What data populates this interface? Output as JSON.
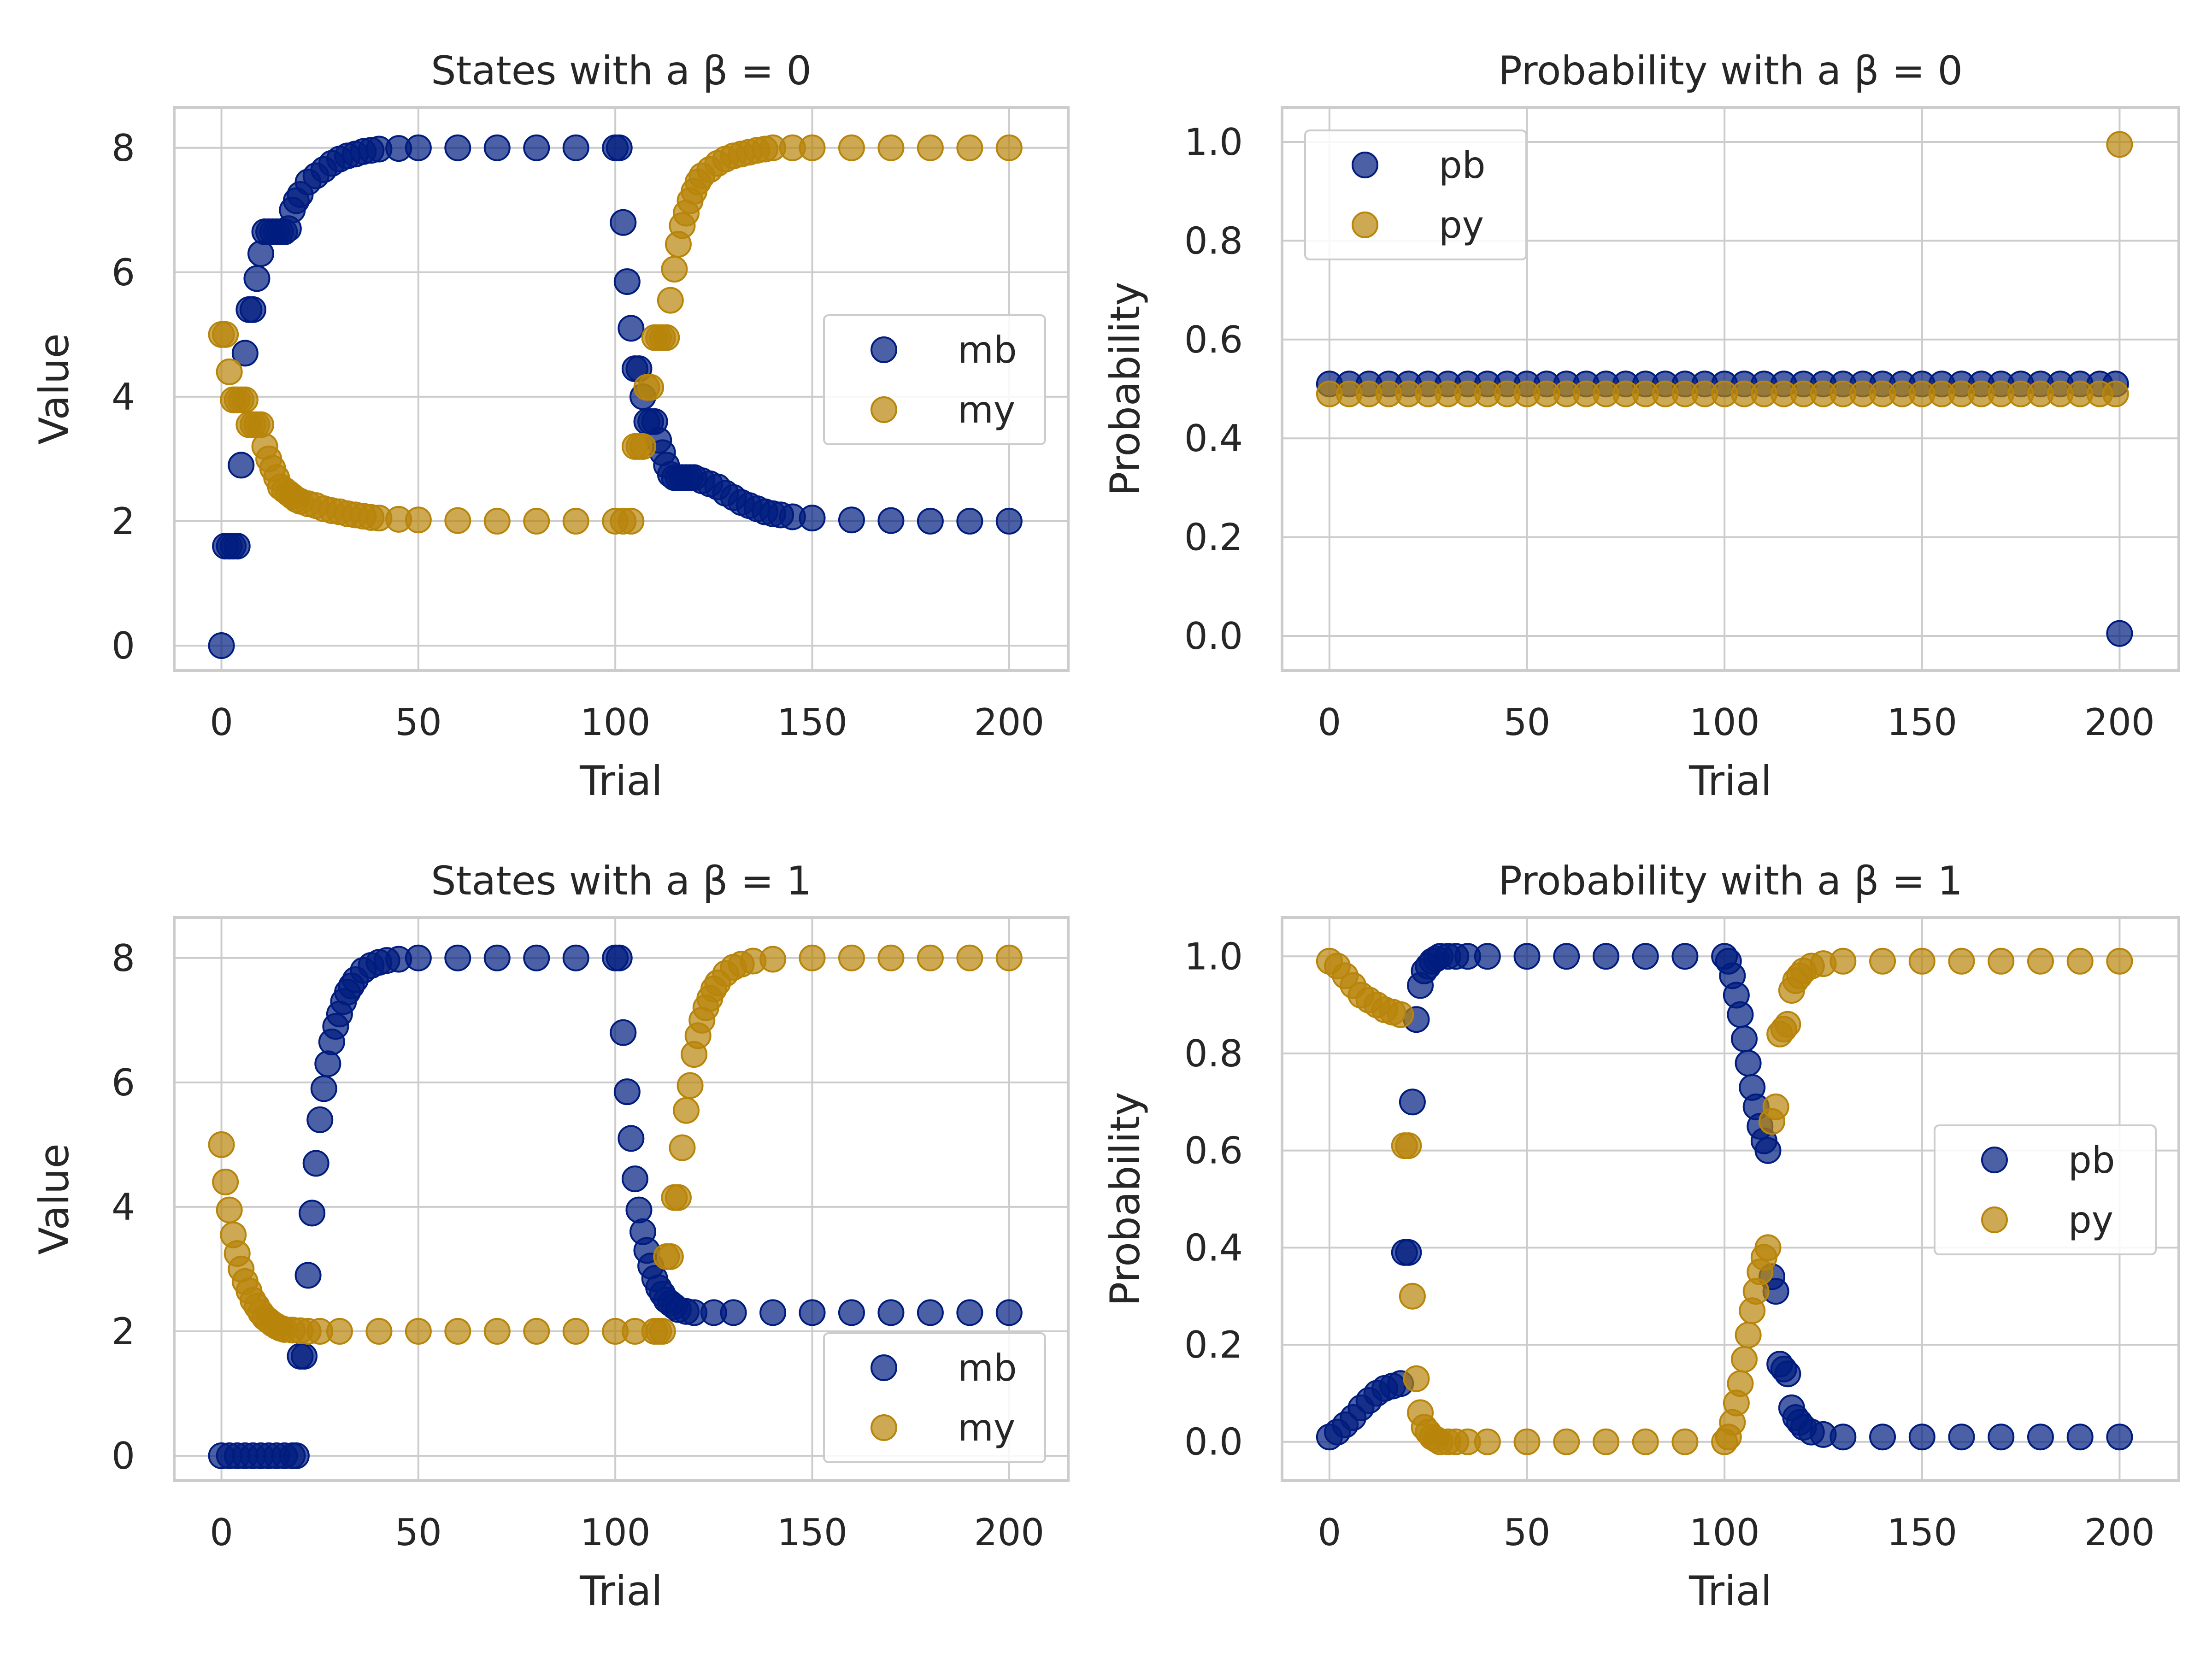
{
  "colors": {
    "mb": "#001c7f",
    "my": "#b8850a",
    "grid": "#cccccc",
    "frame": "#cccccc"
  },
  "chart_data": [
    {
      "type": "scatter",
      "title": "States with a β = 0",
      "xlabel": "Trial",
      "ylabel": "Value",
      "xlim": [
        -12,
        215
      ],
      "ylim": [
        -0.4,
        8.65
      ],
      "xticks": [
        0,
        50,
        100,
        150,
        200
      ],
      "yticks": [
        0,
        2,
        4,
        6,
        8
      ],
      "grid": true,
      "legend": "center-right",
      "series": [
        {
          "name": "mb",
          "x": [
            0,
            1,
            2,
            3,
            4,
            5,
            6,
            7,
            8,
            9,
            10,
            11,
            12,
            13,
            14,
            15,
            16,
            17,
            18,
            19,
            20,
            22,
            24,
            26,
            28,
            30,
            32,
            34,
            36,
            38,
            40,
            45,
            50,
            60,
            70,
            80,
            90,
            100,
            101,
            102,
            103,
            104,
            105,
            106,
            107,
            108,
            109,
            110,
            111,
            112,
            113,
            114,
            115,
            116,
            117,
            118,
            119,
            120,
            122,
            124,
            126,
            128,
            130,
            132,
            134,
            136,
            138,
            140,
            142,
            145,
            150,
            160,
            170,
            180,
            190,
            200
          ],
          "y": [
            0,
            1.6,
            1.6,
            1.6,
            1.6,
            2.9,
            4.7,
            5.4,
            5.4,
            5.9,
            6.3,
            6.65,
            6.65,
            6.65,
            6.65,
            6.65,
            6.65,
            6.7,
            7.0,
            7.15,
            7.25,
            7.45,
            7.55,
            7.65,
            7.75,
            7.82,
            7.87,
            7.9,
            7.94,
            7.96,
            7.98,
            7.99,
            8.0,
            8.0,
            8.0,
            8.0,
            8.0,
            8.0,
            8.0,
            6.8,
            5.85,
            5.1,
            4.45,
            4.45,
            4.0,
            3.6,
            3.6,
            3.6,
            3.3,
            3.1,
            2.9,
            2.75,
            2.7,
            2.7,
            2.7,
            2.7,
            2.7,
            2.7,
            2.65,
            2.6,
            2.55,
            2.45,
            2.38,
            2.3,
            2.25,
            2.2,
            2.15,
            2.12,
            2.1,
            2.07,
            2.05,
            2.02,
            2.01,
            2.0,
            2.0,
            2.0
          ]
        },
        {
          "name": "my",
          "x": [
            0,
            1,
            2,
            3,
            4,
            5,
            6,
            7,
            8,
            9,
            10,
            11,
            12,
            13,
            14,
            15,
            16,
            17,
            18,
            19,
            20,
            22,
            24,
            26,
            28,
            30,
            32,
            34,
            36,
            38,
            40,
            45,
            50,
            60,
            70,
            80,
            90,
            100,
            102,
            104,
            105,
            106,
            107,
            108,
            109,
            110,
            111,
            112,
            113,
            114,
            115,
            116,
            117,
            118,
            119,
            120,
            121,
            122,
            124,
            126,
            128,
            130,
            132,
            134,
            136,
            138,
            140,
            145,
            150,
            160,
            170,
            180,
            190,
            200
          ],
          "y": [
            5.0,
            5.0,
            4.4,
            3.95,
            3.95,
            3.95,
            3.95,
            3.55,
            3.55,
            3.55,
            3.55,
            3.2,
            3.0,
            2.85,
            2.7,
            2.55,
            2.5,
            2.45,
            2.4,
            2.35,
            2.32,
            2.28,
            2.25,
            2.2,
            2.17,
            2.15,
            2.12,
            2.1,
            2.08,
            2.06,
            2.05,
            2.03,
            2.02,
            2.01,
            2.0,
            2.0,
            2.0,
            2.0,
            2.0,
            2.0,
            3.2,
            3.2,
            3.2,
            4.15,
            4.15,
            4.95,
            4.95,
            4.95,
            4.95,
            5.55,
            6.05,
            6.45,
            6.75,
            6.95,
            7.15,
            7.3,
            7.45,
            7.55,
            7.65,
            7.75,
            7.82,
            7.87,
            7.9,
            7.93,
            7.96,
            7.98,
            8.0,
            8.0,
            8.0,
            8.0,
            8.0,
            8.0,
            8.0,
            8.0
          ]
        }
      ]
    },
    {
      "type": "scatter",
      "title": "Probability with a β = 0",
      "xlabel": "Trial",
      "ylabel": "Probability",
      "xlim": [
        -12,
        215
      ],
      "ylim": [
        -0.07,
        1.07
      ],
      "xticks": [
        0,
        50,
        100,
        150,
        200
      ],
      "yticks": [
        0.0,
        0.2,
        0.4,
        0.6,
        0.8,
        1.0
      ],
      "grid": true,
      "legend": "top-left",
      "series": [
        {
          "name": "pb",
          "x": [
            0,
            5,
            10,
            15,
            20,
            25,
            30,
            35,
            40,
            45,
            50,
            55,
            60,
            65,
            70,
            75,
            80,
            85,
            90,
            95,
            100,
            105,
            110,
            115,
            120,
            125,
            130,
            135,
            140,
            145,
            150,
            155,
            160,
            165,
            170,
            175,
            180,
            185,
            190,
            195,
            199,
            200
          ],
          "y": [
            0.51,
            0.51,
            0.51,
            0.51,
            0.51,
            0.51,
            0.51,
            0.51,
            0.51,
            0.51,
            0.51,
            0.51,
            0.51,
            0.51,
            0.51,
            0.51,
            0.51,
            0.51,
            0.51,
            0.51,
            0.51,
            0.51,
            0.51,
            0.51,
            0.51,
            0.51,
            0.51,
            0.51,
            0.51,
            0.51,
            0.51,
            0.51,
            0.51,
            0.51,
            0.51,
            0.51,
            0.51,
            0.51,
            0.51,
            0.51,
            0.51,
            0.005
          ]
        },
        {
          "name": "py",
          "x": [
            0,
            5,
            10,
            15,
            20,
            25,
            30,
            35,
            40,
            45,
            50,
            55,
            60,
            65,
            70,
            75,
            80,
            85,
            90,
            95,
            100,
            105,
            110,
            115,
            120,
            125,
            130,
            135,
            140,
            145,
            150,
            155,
            160,
            165,
            170,
            175,
            180,
            185,
            190,
            195,
            199,
            200
          ],
          "y": [
            0.49,
            0.49,
            0.49,
            0.49,
            0.49,
            0.49,
            0.49,
            0.49,
            0.49,
            0.49,
            0.49,
            0.49,
            0.49,
            0.49,
            0.49,
            0.49,
            0.49,
            0.49,
            0.49,
            0.49,
            0.49,
            0.49,
            0.49,
            0.49,
            0.49,
            0.49,
            0.49,
            0.49,
            0.49,
            0.49,
            0.49,
            0.49,
            0.49,
            0.49,
            0.49,
            0.49,
            0.49,
            0.49,
            0.49,
            0.49,
            0.49,
            0.995
          ]
        }
      ]
    },
    {
      "type": "scatter",
      "title": "States with a β = 1",
      "xlabel": "Trial",
      "ylabel": "Value",
      "xlim": [
        -12,
        215
      ],
      "ylim": [
        -0.4,
        8.65
      ],
      "xticks": [
        0,
        50,
        100,
        150,
        200
      ],
      "yticks": [
        0,
        2,
        4,
        6,
        8
      ],
      "grid": true,
      "legend": "bottom-right",
      "series": [
        {
          "name": "mb",
          "x": [
            0,
            2,
            4,
            6,
            8,
            10,
            12,
            14,
            16,
            18,
            19,
            20,
            21,
            22,
            23,
            24,
            25,
            26,
            27,
            28,
            29,
            30,
            31,
            32,
            33,
            34,
            36,
            38,
            40,
            42,
            45,
            50,
            60,
            70,
            80,
            90,
            100,
            101,
            102,
            103,
            104,
            105,
            106,
            107,
            108,
            109,
            110,
            111,
            112,
            113,
            114,
            115,
            116,
            118,
            120,
            125,
            130,
            140,
            150,
            160,
            170,
            180,
            190,
            200
          ],
          "y": [
            0,
            0,
            0,
            0,
            0,
            0,
            0,
            0,
            0,
            0,
            0,
            1.6,
            1.6,
            2.9,
            3.9,
            4.7,
            5.4,
            5.9,
            6.3,
            6.65,
            6.9,
            7.1,
            7.3,
            7.45,
            7.55,
            7.65,
            7.8,
            7.88,
            7.93,
            7.96,
            7.98,
            8.0,
            8.0,
            8.0,
            8.0,
            8.0,
            8.0,
            8.0,
            6.8,
            5.85,
            5.1,
            4.45,
            3.95,
            3.6,
            3.3,
            3.05,
            2.85,
            2.7,
            2.6,
            2.5,
            2.45,
            2.4,
            2.35,
            2.32,
            2.3,
            2.3,
            2.3,
            2.3,
            2.3,
            2.3,
            2.3,
            2.3,
            2.3,
            2.3
          ]
        },
        {
          "name": "my",
          "x": [
            0,
            1,
            2,
            3,
            4,
            5,
            6,
            7,
            8,
            9,
            10,
            11,
            12,
            13,
            14,
            15,
            16,
            18,
            20,
            22,
            25,
            30,
            40,
            50,
            60,
            70,
            80,
            90,
            100,
            105,
            110,
            111,
            112,
            113,
            114,
            115,
            116,
            117,
            118,
            119,
            120,
            121,
            122,
            123,
            124,
            125,
            126,
            128,
            130,
            132,
            135,
            140,
            150,
            160,
            170,
            180,
            190,
            200
          ],
          "y": [
            5.0,
            4.4,
            3.95,
            3.55,
            3.25,
            3.0,
            2.8,
            2.65,
            2.5,
            2.4,
            2.3,
            2.22,
            2.17,
            2.12,
            2.08,
            2.05,
            2.03,
            2.02,
            2.01,
            2.0,
            2.0,
            2.0,
            2.0,
            2.0,
            2.0,
            2.0,
            2.0,
            2.0,
            2.0,
            2.0,
            2.0,
            2.0,
            2.0,
            3.2,
            3.2,
            4.15,
            4.15,
            4.95,
            5.55,
            5.95,
            6.45,
            6.75,
            7.0,
            7.2,
            7.35,
            7.5,
            7.6,
            7.75,
            7.85,
            7.9,
            7.95,
            7.98,
            8.0,
            8.0,
            8.0,
            8.0,
            8.0,
            8.0
          ]
        }
      ]
    },
    {
      "type": "scatter",
      "title": "Probability with a β = 1",
      "xlabel": "Trial",
      "ylabel": "Probability",
      "xlim": [
        -12,
        215
      ],
      "ylim": [
        -0.08,
        1.08
      ],
      "xticks": [
        0,
        50,
        100,
        150,
        200
      ],
      "yticks": [
        0.0,
        0.2,
        0.4,
        0.6,
        0.8,
        1.0
      ],
      "grid": true,
      "legend": "center-right",
      "series": [
        {
          "name": "pb",
          "x": [
            0,
            2,
            4,
            6,
            8,
            10,
            12,
            14,
            16,
            18,
            19,
            20,
            21,
            22,
            23,
            24,
            25,
            26,
            27,
            28,
            30,
            32,
            35,
            40,
            50,
            60,
            70,
            80,
            90,
            100,
            101,
            102,
            103,
            104,
            105,
            106,
            107,
            108,
            109,
            110,
            111,
            112,
            113,
            114,
            115,
            116,
            117,
            118,
            119,
            120,
            122,
            125,
            130,
            140,
            150,
            160,
            170,
            180,
            190,
            200
          ],
          "y": [
            0.01,
            0.02,
            0.035,
            0.05,
            0.07,
            0.085,
            0.1,
            0.11,
            0.115,
            0.12,
            0.39,
            0.39,
            0.7,
            0.87,
            0.94,
            0.97,
            0.98,
            0.99,
            0.995,
            1.0,
            1.0,
            1.0,
            1.0,
            1.0,
            1.0,
            1.0,
            1.0,
            1.0,
            1.0,
            1.0,
            0.99,
            0.96,
            0.92,
            0.88,
            0.83,
            0.78,
            0.73,
            0.69,
            0.65,
            0.62,
            0.6,
            0.34,
            0.31,
            0.16,
            0.15,
            0.14,
            0.07,
            0.05,
            0.04,
            0.03,
            0.02,
            0.015,
            0.01,
            0.01,
            0.01,
            0.01,
            0.01,
            0.01,
            0.01,
            0.01
          ]
        },
        {
          "name": "py",
          "x": [
            0,
            2,
            4,
            6,
            8,
            10,
            12,
            14,
            16,
            18,
            19,
            20,
            21,
            22,
            23,
            24,
            25,
            26,
            27,
            28,
            30,
            32,
            35,
            40,
            50,
            60,
            70,
            80,
            90,
            100,
            101,
            102,
            103,
            104,
            105,
            106,
            107,
            108,
            109,
            110,
            111,
            112,
            113,
            114,
            115,
            116,
            117,
            118,
            119,
            120,
            122,
            125,
            130,
            140,
            150,
            160,
            170,
            180,
            190,
            200
          ],
          "y": [
            0.99,
            0.98,
            0.96,
            0.94,
            0.92,
            0.91,
            0.9,
            0.89,
            0.885,
            0.88,
            0.61,
            0.61,
            0.3,
            0.13,
            0.06,
            0.03,
            0.02,
            0.01,
            0.005,
            0.0,
            0.0,
            0.0,
            0.0,
            0.0,
            0.0,
            0.0,
            0.0,
            0.0,
            0.0,
            0.0,
            0.01,
            0.04,
            0.08,
            0.12,
            0.17,
            0.22,
            0.27,
            0.31,
            0.35,
            0.38,
            0.4,
            0.66,
            0.69,
            0.84,
            0.85,
            0.86,
            0.93,
            0.95,
            0.96,
            0.97,
            0.98,
            0.985,
            0.99,
            0.99,
            0.99,
            0.99,
            0.99,
            0.99,
            0.99,
            0.99
          ]
        }
      ]
    }
  ]
}
